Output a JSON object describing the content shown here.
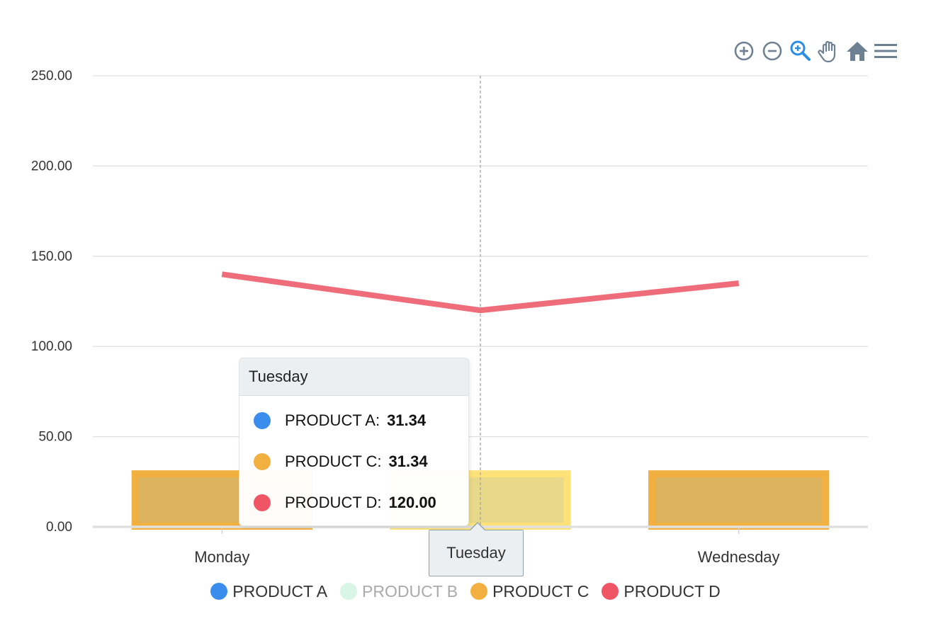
{
  "chart_data": {
    "type": "bar",
    "categories": [
      "Monday",
      "Tuesday",
      "Wednesday"
    ],
    "ylim": [
      0,
      250
    ],
    "yticks": [
      "0.00",
      "50.00",
      "100.00",
      "150.00",
      "200.00",
      "250.00"
    ],
    "ytick_values": [
      0,
      50,
      100,
      150,
      200,
      250
    ],
    "series": [
      {
        "name": "PRODUCT A",
        "type": "bar",
        "color": "#3b8ded",
        "values": [
          31.34,
          31.34,
          31.34
        ],
        "visible": true
      },
      {
        "name": "PRODUCT B",
        "type": "bar",
        "color": "#d9f5e5",
        "values": [
          null,
          null,
          null
        ],
        "visible": false
      },
      {
        "name": "PRODUCT C",
        "type": "bar",
        "color": "#f2b040",
        "values": [
          31.34,
          31.34,
          31.34
        ],
        "visible": true
      },
      {
        "name": "PRODUCT D",
        "type": "line",
        "color": "#ef6d7a",
        "values": [
          140,
          120,
          135
        ],
        "visible": true
      }
    ],
    "highlighted_category": "Tuesday",
    "grid": true,
    "legend_position": "bottom-center"
  },
  "tooltip": {
    "title": "Tuesday",
    "rows": [
      {
        "label": "PRODUCT A:",
        "value": "31.34",
        "color": "#3b8ded"
      },
      {
        "label": "PRODUCT C:",
        "value": "31.34",
        "color": "#f2b040"
      },
      {
        "label": "PRODUCT D:",
        "value": "120.00",
        "color": "#ef5565"
      }
    ]
  },
  "crosshair_label": "Tuesday",
  "legend": [
    {
      "label": "PRODUCT A",
      "color": "#3b8ded",
      "active": true
    },
    {
      "label": "PRODUCT B",
      "color": "#d9f5e5",
      "active": false
    },
    {
      "label": "PRODUCT C",
      "color": "#f2b040",
      "active": true
    },
    {
      "label": "PRODUCT D",
      "color": "#ef5565",
      "active": true
    }
  ],
  "toolbar": {
    "icons": [
      "zoom-in-icon",
      "zoom-out-icon",
      "selection-zoom-icon",
      "pan-icon",
      "reset-home-icon",
      "menu-icon"
    ],
    "active_color": "#2a8de8",
    "icon_color": "#6e8192"
  }
}
